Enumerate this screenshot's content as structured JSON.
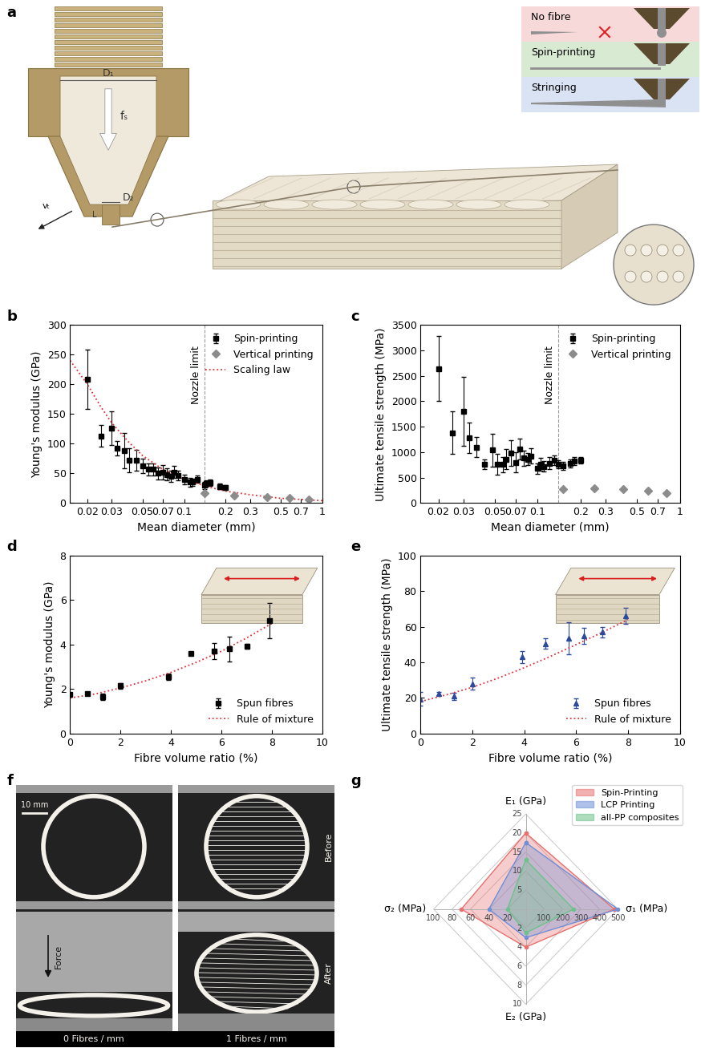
{
  "panel_a": {
    "panel": "a",
    "labels": {
      "d1": "D₁",
      "fs": "fₛ",
      "d2": "D₂",
      "l": "L",
      "vt": "vₜ"
    },
    "modes": [
      "No fibre",
      "Spin-printing",
      "Stringing"
    ]
  },
  "chart_data": [
    {
      "type": "scatter",
      "panel": "b",
      "log": "x",
      "x_label": "Mean diameter (mm)",
      "y_label": "Young's modulus (GPa)",
      "xlim": [
        0.015,
        1
      ],
      "ylim": [
        0,
        300
      ],
      "xticks": [
        0.02,
        0.03,
        0.05,
        0.07,
        0.1,
        0.2,
        0.3,
        0.5,
        0.7,
        1
      ],
      "yticks": [
        0,
        50,
        100,
        150,
        200,
        250,
        300
      ],
      "legend": "upper right",
      "annotations": [
        {
          "text": "Nozzle limit",
          "x": 0.14
        }
      ],
      "series": [
        {
          "name": "Spin-printing",
          "type": "scatter",
          "marker": "square",
          "color": "#000000",
          "x": [
            0.02,
            0.025,
            0.03,
            0.033,
            0.037,
            0.04,
            0.045,
            0.05,
            0.055,
            0.06,
            0.065,
            0.07,
            0.075,
            0.08,
            0.085,
            0.09,
            0.1,
            0.11,
            0.115,
            0.125,
            0.14,
            0.145,
            0.155,
            0.18,
            0.2
          ],
          "values": [
            208,
            113,
            126,
            92,
            88,
            72,
            72,
            63,
            57,
            57,
            50,
            52,
            48,
            45,
            52,
            46,
            40,
            35,
            35,
            40,
            30,
            33,
            34,
            28,
            26
          ],
          "errors": [
            50,
            18,
            28,
            12,
            30,
            20,
            18,
            12,
            10,
            10,
            10,
            12,
            10,
            10,
            10,
            8,
            8,
            8,
            6,
            6,
            6,
            5,
            5,
            5,
            4
          ]
        },
        {
          "name": "Vertical printing",
          "type": "scatter",
          "marker": "diamond",
          "color": "#8c8c8c",
          "x": [
            0.14,
            0.23,
            0.4,
            0.58,
            0.8
          ],
          "values": [
            17,
            13,
            10,
            8,
            6
          ]
        },
        {
          "name": "Scaling law",
          "type": "line",
          "line_style": "dotted",
          "color": "#e0303a",
          "x": [
            0.015,
            0.02,
            0.025,
            0.03,
            0.04,
            0.05,
            0.07,
            0.1,
            0.15,
            0.2,
            0.3,
            0.5,
            0.7,
            1
          ],
          "values": [
            240,
            200,
            162,
            135,
            102,
            80,
            57,
            40,
            27,
            20,
            14,
            8,
            6,
            4
          ]
        }
      ]
    },
    {
      "type": "scatter",
      "panel": "c",
      "log": "x",
      "x_label": "Mean diameter (mm)",
      "y_label": "Ultimate tensile strength (MPa)",
      "xlim": [
        0.015,
        1
      ],
      "ylim": [
        0,
        3500
      ],
      "xticks": [
        0.02,
        0.03,
        0.05,
        0.07,
        0.1,
        0.2,
        0.3,
        0.5,
        0.7,
        1
      ],
      "yticks": [
        0,
        500,
        1000,
        1500,
        2000,
        2500,
        3000,
        3500
      ],
      "legend": "upper right",
      "annotations": [
        {
          "text": "Nozzle limit",
          "x": 0.14
        }
      ],
      "series": [
        {
          "name": "Spin-printing",
          "type": "scatter",
          "marker": "square",
          "color": "#000000",
          "x": [
            0.02,
            0.025,
            0.03,
            0.033,
            0.037,
            0.042,
            0.048,
            0.052,
            0.057,
            0.06,
            0.065,
            0.07,
            0.075,
            0.08,
            0.085,
            0.09,
            0.1,
            0.105,
            0.11,
            0.12,
            0.13,
            0.14,
            0.15,
            0.17,
            0.18,
            0.2
          ],
          "values": [
            2640,
            1380,
            1800,
            1280,
            1100,
            760,
            1040,
            760,
            760,
            860,
            980,
            800,
            1060,
            880,
            860,
            920,
            680,
            760,
            720,
            780,
            840,
            760,
            730,
            780,
            820,
            840
          ],
          "errors": [
            640,
            420,
            680,
            300,
            200,
            100,
            320,
            200,
            150,
            200,
            250,
            200,
            200,
            150,
            120,
            150,
            100,
            120,
            100,
            120,
            100,
            80,
            80,
            80,
            80,
            60
          ]
        },
        {
          "name": "Vertical printing",
          "type": "scatter",
          "marker": "diamond",
          "color": "#8c8c8c",
          "x": [
            0.15,
            0.25,
            0.4,
            0.6,
            0.8
          ],
          "values": [
            280,
            290,
            270,
            240,
            200
          ]
        }
      ]
    },
    {
      "type": "scatter",
      "panel": "d",
      "x_label": "Fibre volume ratio (%)",
      "y_label": "Young's modulus (GPa)",
      "xlim": [
        0,
        10
      ],
      "ylim": [
        0,
        8
      ],
      "xticks": [
        0,
        2,
        4,
        6,
        8,
        10
      ],
      "yticks": [
        0,
        2,
        4,
        6,
        8
      ],
      "legend": "lower right",
      "series": [
        {
          "name": "Spun fibres",
          "type": "scatter",
          "marker": "square",
          "color": "#000000",
          "x": [
            0,
            0.7,
            1.3,
            2,
            3.9,
            4.8,
            5.7,
            6.3,
            7,
            7.9
          ],
          "values": [
            1.75,
            1.8,
            1.65,
            2.15,
            2.55,
            3.6,
            3.7,
            3.8,
            3.92,
            5.08
          ],
          "errors": [
            0.1,
            0.08,
            0.15,
            0.12,
            0.15,
            0.08,
            0.35,
            0.55,
            0.12,
            0.8
          ]
        },
        {
          "name": "Rule of mixture",
          "type": "line",
          "line_style": "dotted",
          "color": "#e0303a",
          "x": [
            0,
            1,
            2,
            3,
            4,
            5,
            6,
            7,
            8
          ],
          "values": [
            1.6,
            1.78,
            2.05,
            2.37,
            2.75,
            3.2,
            3.7,
            4.3,
            4.95
          ]
        }
      ]
    },
    {
      "type": "scatter",
      "panel": "e",
      "x_label": "Fibre volume ratio (%)",
      "y_label": "Ultimate tensile strength (MPa)",
      "xlim": [
        0,
        10
      ],
      "ylim": [
        0,
        100
      ],
      "xticks": [
        0,
        2,
        4,
        6,
        8,
        10
      ],
      "yticks": [
        0,
        20,
        40,
        60,
        80,
        100
      ],
      "legend": "lower right",
      "series": [
        {
          "name": "Spun fibres",
          "type": "scatter",
          "marker": "triangle",
          "color": "#2b4a9c",
          "x": [
            0,
            0.7,
            1.3,
            2,
            3.9,
            4.8,
            5.7,
            6.3,
            7,
            7.9
          ],
          "values": [
            19.5,
            22.5,
            21,
            28,
            43,
            50.5,
            53.5,
            55,
            57,
            66
          ],
          "errors": [
            4,
            1,
            2,
            3.5,
            3.5,
            3,
            9,
            4.5,
            3,
            4.5
          ]
        },
        {
          "name": "Rule of mixture",
          "type": "line",
          "line_style": "dotted",
          "color": "#e0303a",
          "x": [
            0,
            1,
            2,
            3,
            4,
            5,
            6,
            7,
            8
          ],
          "values": [
            18,
            21.8,
            26,
            31.2,
            37,
            43.3,
            50,
            56.8,
            64
          ]
        }
      ]
    },
    {
      "type": "radar",
      "panel": "g",
      "legend": "upper right",
      "axes": [
        {
          "label": "E₁ (GPa)",
          "lim": [
            0,
            25
          ],
          "ticks": [
            5,
            10,
            15,
            20,
            25
          ]
        },
        {
          "label": "σ₁ (MPa)",
          "lim": [
            0,
            500
          ],
          "ticks": [
            100,
            200,
            300,
            400,
            500
          ]
        },
        {
          "label": "E₂ (GPa)",
          "lim": [
            0,
            10
          ],
          "ticks": [
            2,
            4,
            6,
            8,
            10
          ]
        },
        {
          "label": "σ₂ (MPa)",
          "lim": [
            0,
            100
          ],
          "ticks": [
            20,
            40,
            60,
            80,
            100
          ]
        }
      ],
      "series": [
        {
          "name": "Spin-Printing",
          "color": "#e8706f",
          "values": [
            20,
            480,
            4,
            70
          ]
        },
        {
          "name": "LCP Printing",
          "color": "#6f8fd8",
          "values": [
            17.5,
            500,
            3,
            40
          ]
        },
        {
          "name": "all-PP composites",
          "color": "#6cc28a",
          "values": [
            13,
            260,
            2.5,
            20
          ]
        }
      ]
    }
  ],
  "panel_f": {
    "panel": "f",
    "scale_bar": "10 mm",
    "force": "Force",
    "rows": [
      "Before",
      "After"
    ],
    "columns": [
      "0 Fibres / mm",
      "1 Fibres / mm"
    ]
  }
}
